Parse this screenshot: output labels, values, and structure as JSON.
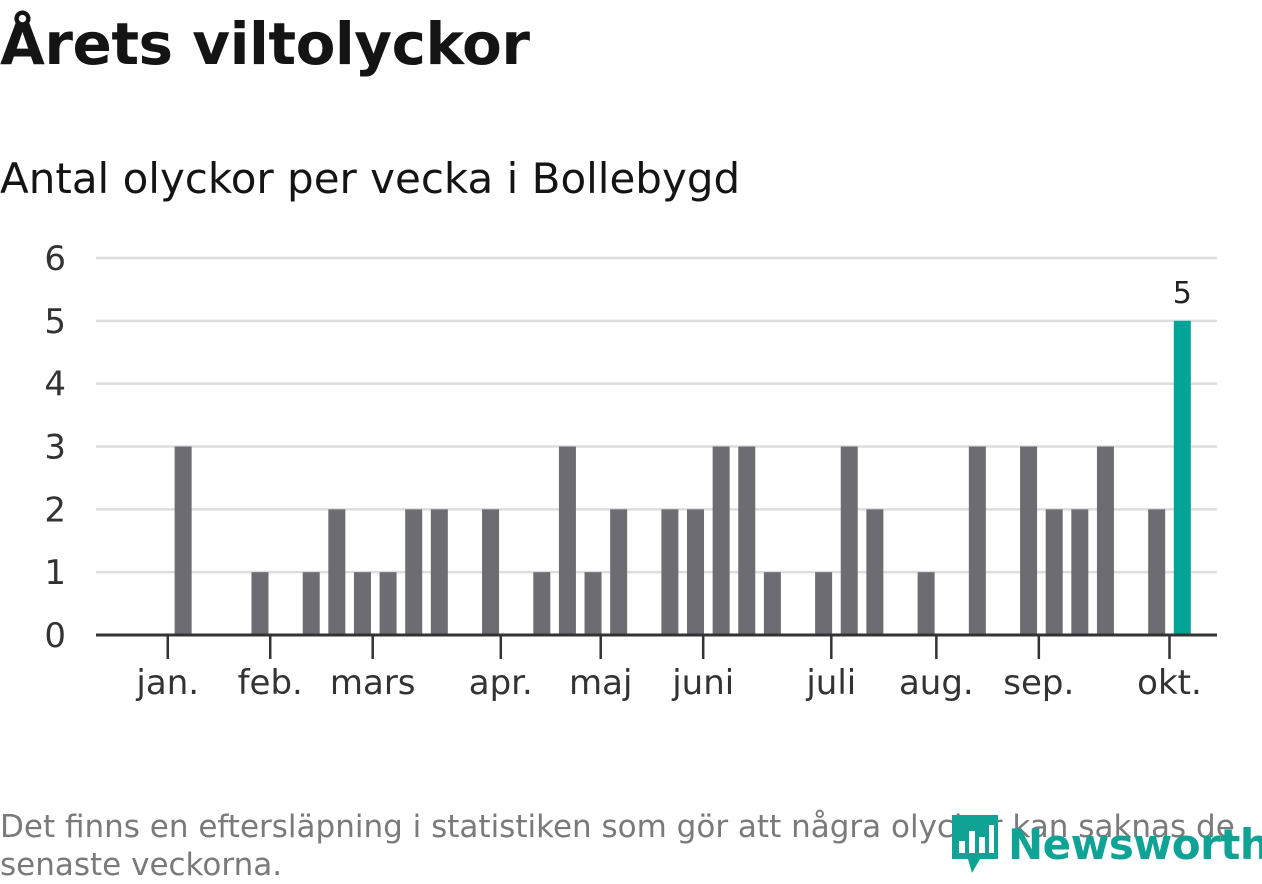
{
  "title": "Årets viltolyckor",
  "subtitle": "Antal olyckor per vecka i Bollebygd",
  "footnote": "Det finns en eftersläpning i statistiken som gör att några olyckor kan saknas de senaste veckorna.",
  "brand": {
    "name": "Newsworthy",
    "color": "#0fa396",
    "icon": "bar-chart-logo-icon"
  },
  "colors": {
    "bar": "#6d6c72",
    "highlight": "#00a598",
    "grid": "#dddddd",
    "axis": "#333333"
  },
  "chart_data": {
    "type": "bar",
    "x": [
      1,
      2,
      3,
      4,
      5,
      6,
      7,
      8,
      9,
      10,
      11,
      12,
      13,
      14,
      15,
      16,
      17,
      18,
      19,
      20,
      21,
      22,
      23,
      24,
      25,
      26,
      27,
      28,
      29,
      30,
      31,
      32,
      33,
      34,
      35,
      36,
      37,
      38,
      39,
      40,
      41,
      42
    ],
    "values": [
      0,
      3,
      0,
      0,
      1,
      0,
      1,
      2,
      1,
      1,
      2,
      2,
      0,
      2,
      0,
      1,
      3,
      1,
      2,
      0,
      2,
      2,
      3,
      3,
      1,
      0,
      1,
      3,
      2,
      0,
      1,
      0,
      3,
      0,
      3,
      2,
      2,
      3,
      0,
      2,
      5,
      0
    ],
    "highlight_index": 40,
    "highlight_label": "5",
    "ylim": [
      0,
      6
    ],
    "yticks": [
      "0",
      "1",
      "2",
      "3",
      "4",
      "5",
      "6"
    ],
    "month_ticks": [
      {
        "label": "jan.",
        "week": 1.4
      },
      {
        "label": "feb.",
        "week": 5.4
      },
      {
        "label": "mars",
        "week": 9.4
      },
      {
        "label": "apr.",
        "week": 14.4
      },
      {
        "label": "maj",
        "week": 18.3
      },
      {
        "label": "juni",
        "week": 22.3
      },
      {
        "label": "juli",
        "week": 27.3
      },
      {
        "label": "aug.",
        "week": 31.4
      },
      {
        "label": "sep.",
        "week": 35.4
      },
      {
        "label": "okt.",
        "week": 40.5
      }
    ],
    "grid": true,
    "xlabel": "",
    "ylabel": ""
  }
}
